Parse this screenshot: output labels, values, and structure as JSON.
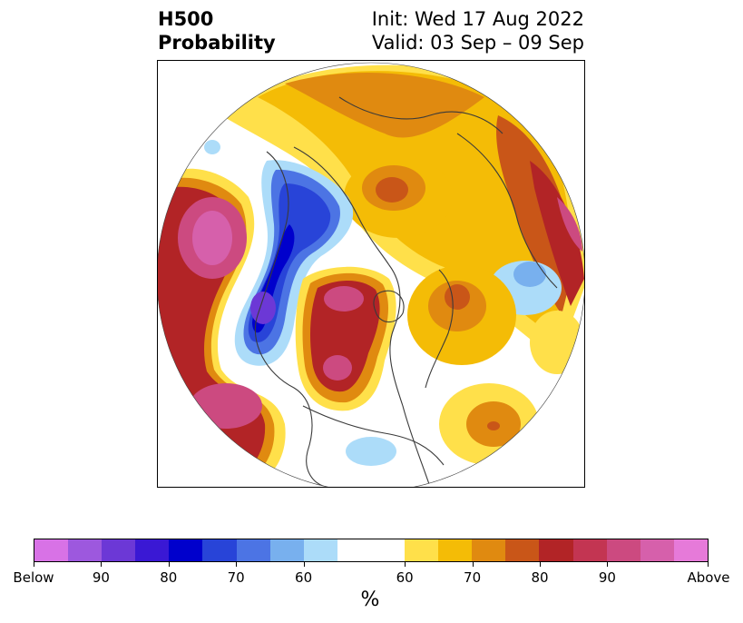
{
  "header": {
    "title_line1": "H500",
    "title_line2": "Probability",
    "init": "Init: Wed 17 Aug 2022",
    "valid": "Valid: 03 Sep – 09 Sep"
  },
  "colorbar": {
    "below_colors": [
      "#d872e6",
      "#9d58de",
      "#6c38d6",
      "#3a18d4",
      "#0000cc",
      "#2844d8",
      "#4c74e4",
      "#78b0ee",
      "#acdcf9"
    ],
    "neutral_color": "#ffffff",
    "above_colors": [
      "#ffe04a",
      "#f4bc06",
      "#e08a10",
      "#c95618",
      "#b22426",
      "#c33552",
      "#cc4a80",
      "#d660ab",
      "#e67ad9"
    ],
    "tick_labels": [
      "Below",
      "90",
      "80",
      "70",
      "60",
      "60",
      "70",
      "80",
      "90",
      "Above"
    ],
    "unit_label": "%"
  },
  "map": {
    "projection": "north-polar-stereographic",
    "anomaly_colors": {
      "above_weak": "#ffe04a",
      "above_mid": "#e08a10",
      "above_strong": "#b22426",
      "above_max": "#d660ab",
      "below_weak": "#acdcf9",
      "below_mid": "#4c74e4",
      "below_strong": "#0000cc",
      "below_max": "#9d58de"
    }
  }
}
